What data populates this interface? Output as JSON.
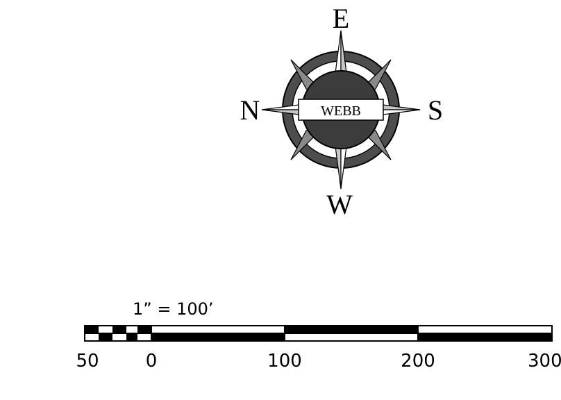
{
  "compass": {
    "labels": {
      "top": "E",
      "left": "N",
      "right": "S",
      "bottom": "W"
    },
    "center_text": "WEBB",
    "colors": {
      "ring": "#4d4d4d",
      "band": "#3c3c3c",
      "point_light": "#c8c8c8",
      "point_dark": "#8a8a8a"
    }
  },
  "scale_bar": {
    "ratio_text": "1”  =  100’",
    "tick_labels": [
      "50",
      "0",
      "100",
      "200",
      "300"
    ]
  }
}
